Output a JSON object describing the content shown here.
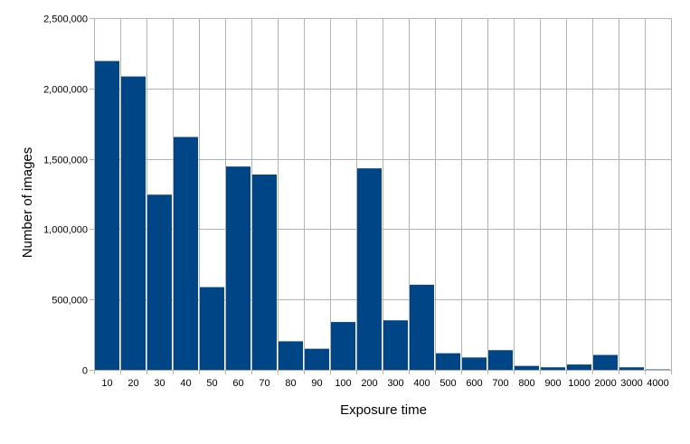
{
  "chart_data": {
    "type": "bar",
    "title": "",
    "xlabel": "Exposure time",
    "ylabel": "Number of images",
    "categories": [
      "10",
      "20",
      "30",
      "40",
      "50",
      "60",
      "70",
      "80",
      "90",
      "100",
      "200",
      "300",
      "400",
      "500",
      "600",
      "700",
      "800",
      "900",
      "1000",
      "2000",
      "3000",
      "4000"
    ],
    "values": [
      2195000,
      2085000,
      1245000,
      1655000,
      588000,
      1445000,
      1388000,
      203000,
      150000,
      340000,
      1432000,
      352000,
      605000,
      118000,
      88000,
      140000,
      28000,
      18000,
      38000,
      106000,
      18000,
      3000
    ],
    "ylim": [
      0,
      2500000
    ],
    "yticks": [
      0,
      500000,
      1000000,
      1500000,
      2000000,
      2500000
    ],
    "ytick_labels": [
      "0",
      "500,000",
      "1,000,000",
      "1,500,000",
      "2,000,000",
      "2,500,000"
    ],
    "grid": true,
    "legend": "none",
    "bar_color": "#004586",
    "grid_color": "#b3b3b3"
  }
}
